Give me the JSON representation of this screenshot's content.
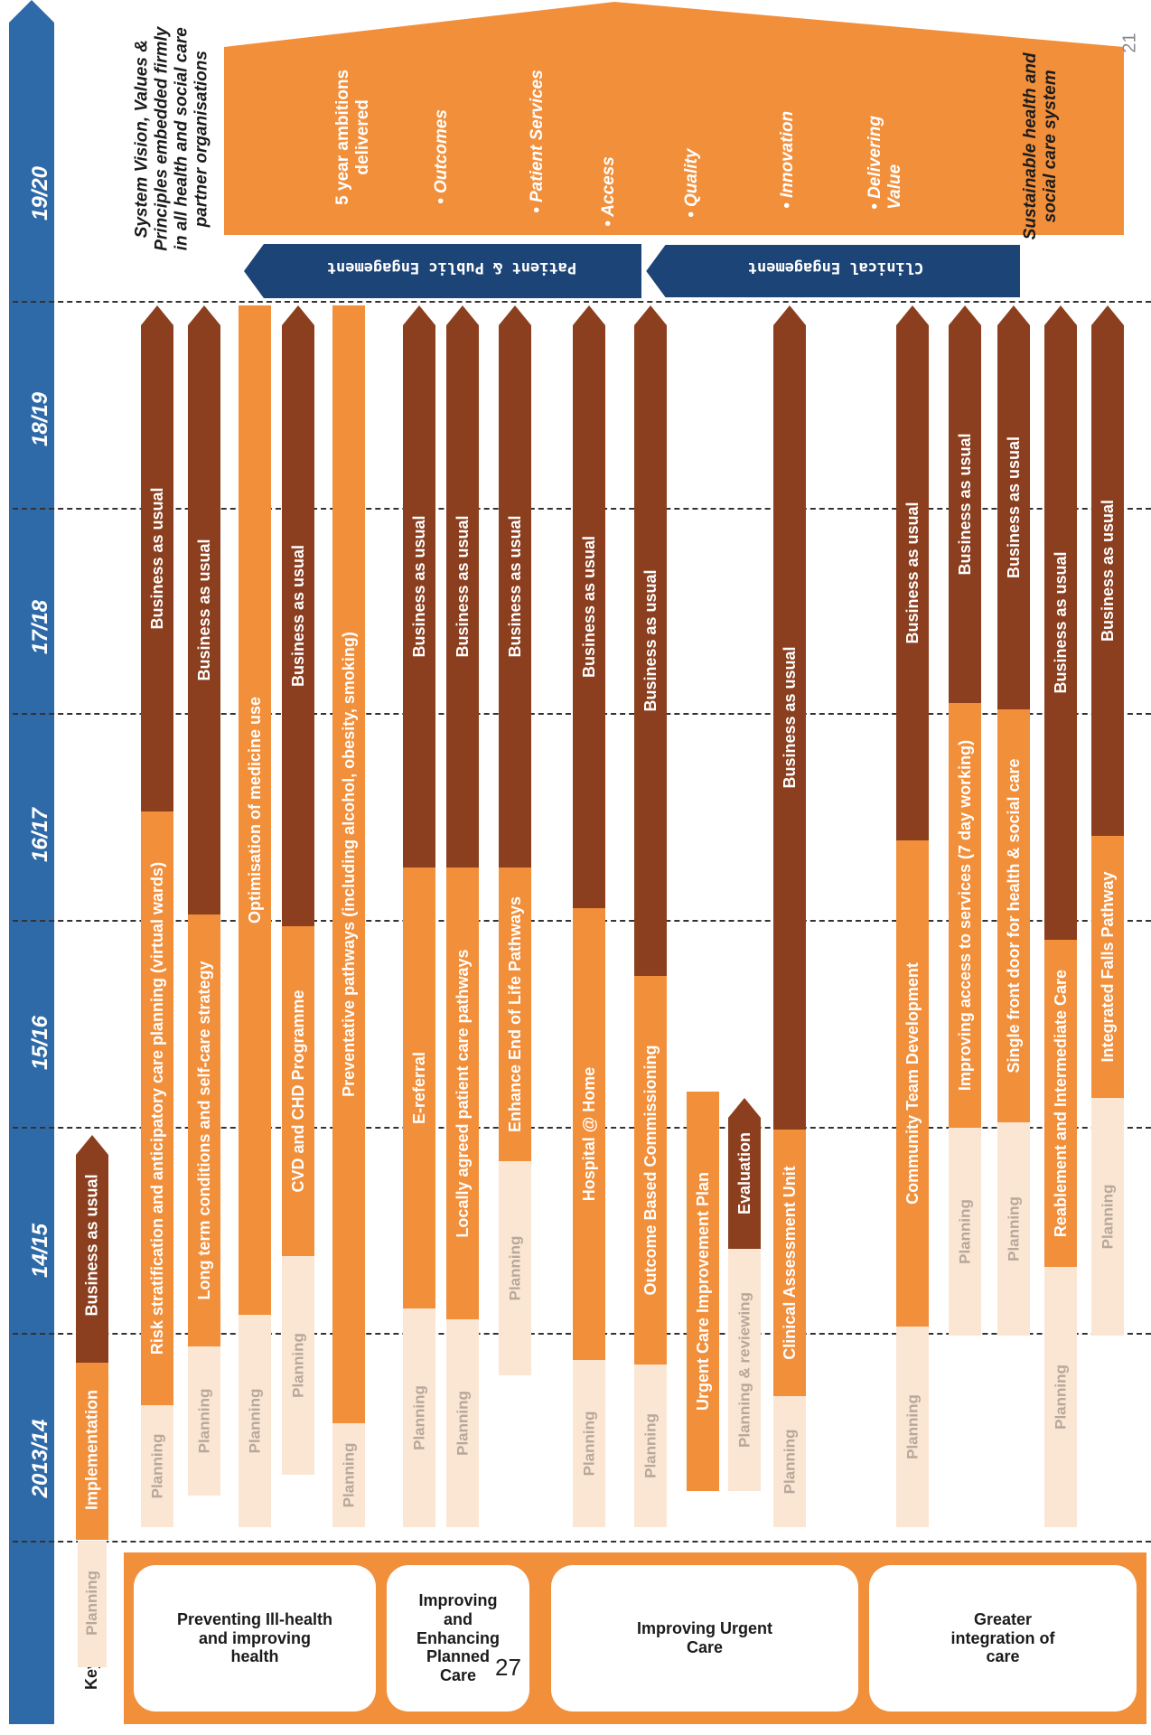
{
  "page_number": "21",
  "page_overlay": "27",
  "timeline": [
    "2013/14",
    "14/15",
    "15/16",
    "16/17",
    "17/18",
    "18/19",
    "19/20"
  ],
  "key": {
    "label": "Key:",
    "planning": "Planning",
    "implementation": "Implementation",
    "bau": "Business as usual"
  },
  "themes": [
    "Preventing Ill-health and improving health",
    "Improving and Enhancing Planned Care",
    "Improving Urgent Care",
    "Greater integration of care"
  ],
  "rows": [
    {
      "planning": "Planning",
      "impl": "Risk stratification and anticipatory care planning (virtual wards)",
      "bau": "Business as usual"
    },
    {
      "planning": "Planning",
      "impl": "Long term conditions and self-care strategy",
      "bau": "Business as usual"
    },
    {
      "planning": "Planning",
      "impl": "Optimisation of medicine use",
      "bau": ""
    },
    {
      "planning": "Planning",
      "impl": "CVD and CHD Programme",
      "bau": "Business as usual"
    },
    {
      "planning": "Planning",
      "impl": "Preventative pathways (including alcohol, obesity, smoking)",
      "bau": ""
    },
    {
      "planning": "Planning",
      "impl": "E-referral",
      "bau": "Business as usual"
    },
    {
      "planning": "Planning",
      "impl": "Locally agreed patient care pathways",
      "bau": "Business as usual"
    },
    {
      "planning": "Planning",
      "impl": "Enhance End of Life Pathways",
      "bau": "Business as usual"
    },
    {
      "planning": "Planning",
      "impl": "Hospital @ Home",
      "bau": "Business as usual"
    },
    {
      "planning": "Planning",
      "impl": "Outcome Based Commissioning",
      "bau": "Business as usual"
    },
    {
      "planning": "",
      "impl": "Urgent Care Improvement Plan",
      "bau": ""
    },
    {
      "planning": "Planning & reviewing",
      "impl": "",
      "bau": "Evaluation"
    },
    {
      "planning": "Planning",
      "impl": "Clinical Assessment Unit",
      "bau": "Business as usual"
    },
    {
      "planning": "Planning",
      "impl": "Community Team Development",
      "bau": "Business as usual"
    },
    {
      "planning": "Planning",
      "impl": "Improving access to services (7 day working)",
      "bau": "Business as usual"
    },
    {
      "planning": "Planning",
      "impl": "Single front door for health & social care",
      "bau": "Business as usual"
    },
    {
      "planning": "Planning",
      "impl": "Reablement and Intermediate Care",
      "bau": "Business as usual"
    },
    {
      "planning": "Planning",
      "impl": "Integrated Falls Pathway",
      "bau": "Business as usual"
    }
  ],
  "vision_text": "System Vision, Values & Principles embedded firmly in all health and social care partner organisations",
  "ambition": {
    "title": "5 year ambitions delivered",
    "bullets": [
      "• Outcomes",
      "• Patient Services",
      "• Access",
      "• Quality",
      "• Innovation",
      "• Delivering Value"
    ]
  },
  "engagement": [
    "Patient & Public Engagement",
    "Clinical Engagement"
  ],
  "sustainable_text": "Sustainable health and social care system",
  "colors": {
    "blue": "#2f6aa8",
    "navy": "#1d4477",
    "orange": "#f28f3b",
    "brown": "#8b3f1f",
    "planning": "#fbe6d4"
  }
}
